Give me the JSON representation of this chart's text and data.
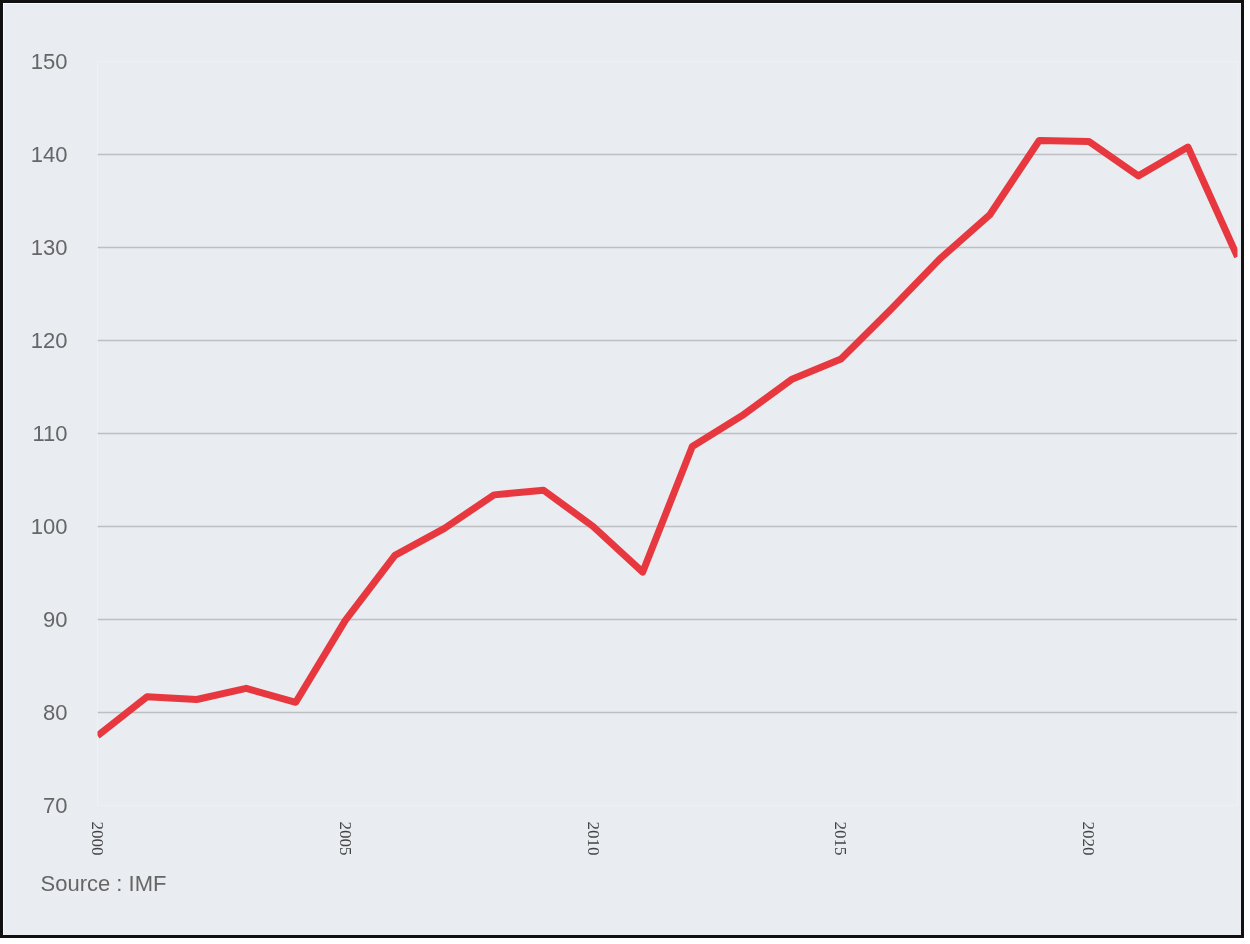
{
  "chart_data": {
    "type": "line",
    "x": [
      2000,
      2001,
      2002,
      2003,
      2004,
      2005,
      2006,
      2007,
      2008,
      2009,
      2010,
      2011,
      2012,
      2013,
      2014,
      2015,
      2016,
      2017,
      2018,
      2019,
      2020,
      2021,
      2022,
      2023
    ],
    "values": [
      77.5,
      81.7,
      81.4,
      82.6,
      81.1,
      89.9,
      96.9,
      99.8,
      103.4,
      103.9,
      100.0,
      95.1,
      108.6,
      111.9,
      115.8,
      118.0,
      123.3,
      128.8,
      133.5,
      141.5,
      141.4,
      137.7,
      140.8,
      129.0
    ],
    "color": "#e8383f",
    "line_style": "solid",
    "xlim": [
      2000,
      2023
    ],
    "ylim": [
      70,
      150
    ],
    "xticks": [
      2000,
      2005,
      2010,
      2015,
      2020
    ],
    "yticks": [
      70,
      80,
      90,
      100,
      110,
      120,
      130,
      140,
      150
    ],
    "grid": "y",
    "annotations": [
      "Source : IMF"
    ]
  }
}
